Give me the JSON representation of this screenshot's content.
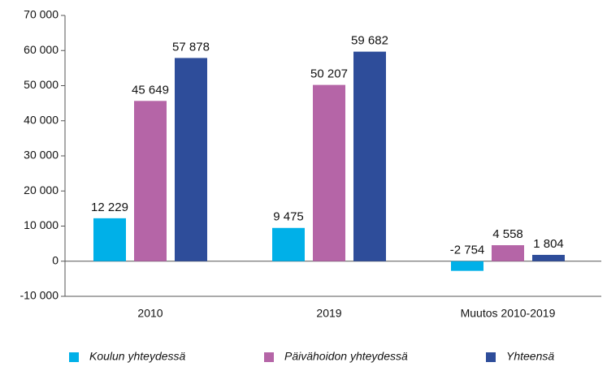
{
  "chart_data": {
    "type": "bar",
    "categories": [
      "2010",
      "2019",
      "Muutos 2010-2019"
    ],
    "series": [
      {
        "name": "Koulun yhteydessä",
        "color": "#00b0e8",
        "values": [
          12229,
          9475,
          -2754
        ],
        "value_labels": [
          "12 229",
          "9 475",
          "-2 754"
        ]
      },
      {
        "name": "Päivähoidon yhteydessä",
        "color": "#b565a7",
        "values": [
          45649,
          50207,
          4558
        ],
        "value_labels": [
          "45 649",
          "50 207",
          "4 558"
        ]
      },
      {
        "name": "Yhteensä",
        "color": "#2e4d9a",
        "values": [
          57878,
          59682,
          1804
        ],
        "value_labels": [
          "57 878",
          "59 682",
          "1 804"
        ]
      }
    ],
    "ylim": [
      -10000,
      70000
    ],
    "yticks": [
      {
        "value": -10000,
        "label": "-10 000"
      },
      0,
      {
        "value": 10000,
        "label": "10 000"
      },
      {
        "value": 20000,
        "label": "20 000"
      },
      {
        "value": 30000,
        "label": "30 000"
      },
      {
        "value": 40000,
        "label": "40 000"
      },
      {
        "value": 50000,
        "label": "50 000"
      },
      {
        "value": 60000,
        "label": "60 000"
      },
      {
        "value": 70000,
        "label": "70 000"
      }
    ],
    "grid": false,
    "legend": "bottom"
  }
}
